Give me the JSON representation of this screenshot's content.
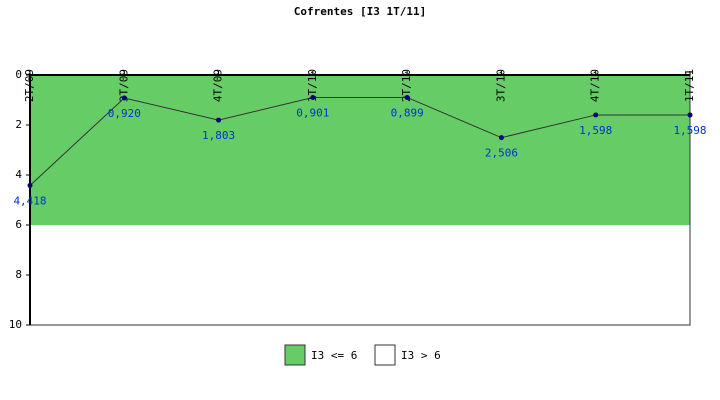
{
  "chart_data": {
    "type": "line",
    "title": "Cofrentes [I3 1T/11]",
    "categories": [
      "2T/09",
      "3T/09",
      "4T/09",
      "1T/10",
      "2T/10",
      "3T/10",
      "4T/10",
      "1T/11"
    ],
    "series": [
      {
        "name": "I3",
        "color": "#000080",
        "values": [
          4.418,
          0.92,
          1.803,
          0.901,
          0.899,
          2.506,
          1.598,
          1.598
        ],
        "value_labels": [
          "4,418",
          "0,920",
          "1,803",
          "0,901",
          "0,899",
          "2,506",
          "1,598",
          "1,598"
        ]
      }
    ],
    "bands": [
      {
        "name": "I3 <= 6",
        "color": "#66cc66",
        "from": 0,
        "to": 6
      },
      {
        "name": "I3 > 6",
        "color": "#ffffff",
        "from": 6,
        "to": 10
      }
    ],
    "ylim": [
      0,
      10
    ],
    "y_inverted": true,
    "yticks": [
      0,
      2,
      4,
      6,
      8,
      10
    ],
    "grid": false
  }
}
